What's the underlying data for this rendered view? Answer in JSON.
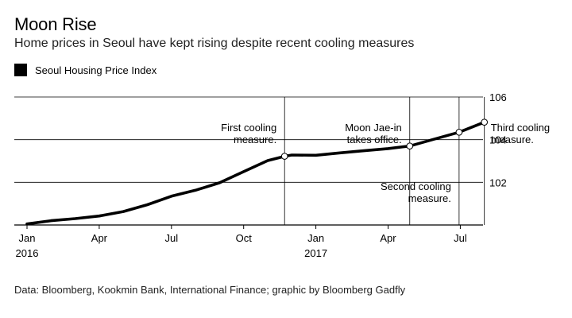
{
  "title": "Moon Rise",
  "subtitle": "Home prices in Seoul have kept rising despite recent cooling measures",
  "source": "Data: Bloomberg, Kookmin Bank, International Finance; graphic by Bloomberg Gadfly",
  "chart_data": {
    "type": "line",
    "legend_placement": "top-left",
    "grid": true,
    "xlim": [
      0,
      19.3
    ],
    "ylim": [
      100,
      106
    ],
    "x_ticks": [
      {
        "x": 0,
        "label": "Jan",
        "sub": "2016"
      },
      {
        "x": 3,
        "label": "Apr",
        "sub": ""
      },
      {
        "x": 6,
        "label": "Jul",
        "sub": ""
      },
      {
        "x": 9,
        "label": "Oct",
        "sub": ""
      },
      {
        "x": 12,
        "label": "Jan",
        "sub": "2017"
      },
      {
        "x": 15,
        "label": "Apr",
        "sub": ""
      },
      {
        "x": 18,
        "label": "Jul",
        "sub": ""
      }
    ],
    "y_ticks": [
      {
        "y": 106,
        "label": "106"
      },
      {
        "y": 104,
        "label": "104"
      },
      {
        "y": 102,
        "label": "102"
      }
    ],
    "series": [
      {
        "name": "Seoul Housing Price Index",
        "color": "#000000",
        "x": [
          0,
          1,
          2,
          3,
          4,
          5,
          6,
          7,
          8,
          9,
          10,
          10.7,
          11,
          12,
          13,
          14,
          15,
          15.9,
          17,
          17.95,
          19
        ],
        "y": [
          100.05,
          100.2,
          100.3,
          100.42,
          100.63,
          100.95,
          101.35,
          101.63,
          101.98,
          102.5,
          103.02,
          103.22,
          103.28,
          103.27,
          103.38,
          103.48,
          103.58,
          103.7,
          104.05,
          104.35,
          104.82
        ]
      }
    ],
    "annotations": [
      {
        "x": 10.7,
        "lines": [
          "First cooling",
          "measure."
        ],
        "position": "upper-left"
      },
      {
        "x": 15.9,
        "lines": [
          "Moon Jae-in",
          "takes office."
        ],
        "position": "upper-left"
      },
      {
        "x": 17.95,
        "lines": [
          "Second cooling",
          "measure."
        ],
        "position": "lower-left"
      },
      {
        "x": 19,
        "lines": [
          "Third cooling",
          "measure."
        ],
        "position": "upper-right"
      }
    ]
  }
}
